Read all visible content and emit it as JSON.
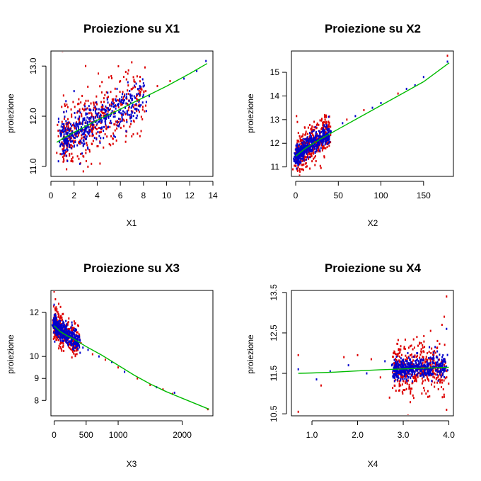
{
  "chart_data": [
    {
      "type": "scatter",
      "title": "Proiezione su X1",
      "xlabel": "X1",
      "ylabel": "proiezione",
      "xlim": [
        0,
        14
      ],
      "ylim": [
        10.8,
        13.3
      ],
      "xticks": [
        0,
        2,
        4,
        6,
        8,
        10,
        12,
        14
      ],
      "xtick_labels": [
        "0",
        "2",
        "4",
        "6",
        "8",
        "10",
        "12",
        "14"
      ],
      "yticks": [
        11.0,
        12.0,
        13.0
      ],
      "ytick_labels": [
        "11.0",
        "12.0",
        "13.0"
      ],
      "ytick_rotated": true,
      "grid": false,
      "series": [
        {
          "color": "#dd0000",
          "points": [
            [
              1.0,
              13.3
            ],
            [
              1.2,
              13.35
            ],
            [
              3.0,
              13.0
            ],
            [
              4.1,
              12.85
            ],
            [
              6.0,
              12.7
            ],
            [
              7.8,
              12.55
            ],
            [
              13.5,
              13.35
            ],
            [
              1.8,
              11.25
            ],
            [
              2.3,
              11.2
            ],
            [
              2.8,
              10.9
            ],
            [
              3.5,
              11.05
            ],
            [
              1.1,
              11.15
            ],
            [
              8.2,
              12.5
            ],
            [
              9.2,
              12.6
            ],
            [
              10.3,
              12.7
            ],
            [
              5.2,
              11.6
            ],
            [
              4.0,
              11.4
            ]
          ]
        },
        {
          "color": "#0000cc",
          "points": [
            [
              1.3,
              12.3
            ],
            [
              2.0,
              12.5
            ],
            [
              0.8,
              11.4
            ],
            [
              11.5,
              12.75
            ],
            [
              12.6,
              12.9
            ],
            [
              13.4,
              13.1
            ],
            [
              3.2,
              11.35
            ],
            [
              2.5,
              11.05
            ],
            [
              6.6,
              12.1
            ],
            [
              8.5,
              12.4
            ]
          ]
        }
      ],
      "clouds": [
        {
          "color": "#dd0000",
          "xc": [
            1.0,
            1.5,
            2.0,
            2.5,
            3.0,
            3.5,
            4.0,
            4.5,
            5.0,
            5.5,
            6.0,
            7.0,
            8.0
          ],
          "yc": [
            11.55,
            11.6,
            11.65,
            11.72,
            11.78,
            11.85,
            11.9,
            11.97,
            12.03,
            12.1,
            12.17,
            12.27,
            12.37
          ],
          "spread": 0.32,
          "count": 420
        },
        {
          "color": "#0000cc",
          "xc": [
            1.0,
            1.5,
            2.0,
            2.5,
            3.0,
            3.5,
            4.0,
            4.5,
            5.0,
            5.5,
            6.0,
            7.0,
            8.0
          ],
          "yc": [
            11.55,
            11.6,
            11.65,
            11.72,
            11.78,
            11.85,
            11.9,
            11.97,
            12.03,
            12.1,
            12.17,
            12.27,
            12.37
          ],
          "spread": 0.2,
          "count": 420
        }
      ],
      "fit_line": {
        "color": "#00bb00",
        "x": [
          0.5,
          1,
          2,
          3,
          4,
          5,
          6,
          7,
          8,
          10,
          12,
          13.5
        ],
        "y": [
          11.48,
          11.55,
          11.68,
          11.8,
          11.92,
          12.03,
          12.14,
          12.26,
          12.37,
          12.6,
          12.85,
          13.05
        ]
      }
    },
    {
      "type": "scatter",
      "title": "Proiezione su X2",
      "xlabel": "X2",
      "ylabel": "proiezione",
      "xlim": [
        -5,
        185
      ],
      "ylim": [
        10.6,
        15.9
      ],
      "xticks": [
        0,
        50,
        100,
        150
      ],
      "xtick_labels": [
        "0",
        "50",
        "100",
        "150"
      ],
      "yticks": [
        11,
        12,
        13,
        14,
        15
      ],
      "ytick_labels": [
        "11",
        "12",
        "13",
        "14",
        "15"
      ],
      "ytick_rotated": false,
      "grid": false,
      "series": [
        {
          "color": "#dd0000",
          "points": [
            [
              1,
              13.15
            ],
            [
              2,
              12.9
            ],
            [
              5,
              10.8
            ],
            [
              8,
              10.9
            ],
            [
              12,
              11.0
            ],
            [
              40,
              12.7
            ],
            [
              60,
              13.0
            ],
            [
              80,
              13.4
            ],
            [
              120,
              14.1
            ],
            [
              178,
              15.7
            ],
            [
              30,
              12.6
            ]
          ]
        },
        {
          "color": "#0000cc",
          "points": [
            [
              55,
              12.85
            ],
            [
              70,
              13.15
            ],
            [
              90,
              13.5
            ],
            [
              100,
              13.7
            ],
            [
              130,
              14.3
            ],
            [
              140,
              14.45
            ],
            [
              150,
              14.8
            ],
            [
              178,
              15.45
            ]
          ]
        }
      ],
      "clouds": [
        {
          "color": "#dd0000",
          "xc": [
            0,
            5,
            10,
            15,
            20,
            25,
            30,
            35,
            40
          ],
          "yc": [
            11.5,
            11.6,
            11.75,
            11.9,
            12.0,
            12.1,
            12.2,
            12.3,
            12.4
          ],
          "spread": 0.38,
          "count": 400
        },
        {
          "color": "#0000cc",
          "xc": [
            0,
            5,
            10,
            15,
            20,
            25,
            30,
            35,
            40
          ],
          "yc": [
            11.5,
            11.6,
            11.75,
            11.9,
            12.0,
            12.1,
            12.2,
            12.3,
            12.4
          ],
          "spread": 0.22,
          "count": 420
        }
      ],
      "fit_line": {
        "color": "#00bb00",
        "x": [
          0,
          10,
          20,
          30,
          50,
          75,
          100,
          125,
          150,
          180
        ],
        "y": [
          11.45,
          11.75,
          11.98,
          12.2,
          12.6,
          13.1,
          13.6,
          14.1,
          14.6,
          15.4
        ]
      }
    },
    {
      "type": "scatter",
      "title": "Proiezione su X3",
      "xlabel": "X3",
      "ylabel": "proiezione",
      "xlim": [
        -50,
        2480
      ],
      "ylim": [
        7.3,
        13.0
      ],
      "xticks": [
        0,
        500,
        1000,
        2000
      ],
      "xtick_labels": [
        "0",
        "500",
        "1000",
        "2000"
      ],
      "yticks": [
        8,
        9,
        10,
        12
      ],
      "ytick_labels": [
        "8",
        "9",
        "10",
        "12"
      ],
      "ytick_rotated": false,
      "grid": false,
      "series": [
        {
          "color": "#dd0000",
          "points": [
            [
              0,
              12.95
            ],
            [
              20,
              12.6
            ],
            [
              100,
              12.25
            ],
            [
              150,
              10.25
            ],
            [
              300,
              10.7
            ],
            [
              420,
              10.6
            ],
            [
              600,
              10.1
            ],
            [
              800,
              9.85
            ],
            [
              1000,
              9.5
            ],
            [
              1300,
              9.0
            ],
            [
              1500,
              8.7
            ],
            [
              1700,
              8.5
            ],
            [
              1850,
              8.3
            ],
            [
              2400,
              7.6
            ]
          ]
        },
        {
          "color": "#0000cc",
          "points": [
            [
              0,
              12.35
            ],
            [
              10,
              11.9
            ],
            [
              450,
              10.4
            ],
            [
              530,
              10.3
            ],
            [
              700,
              10.0
            ],
            [
              900,
              9.75
            ],
            [
              1100,
              9.3
            ],
            [
              1600,
              8.6
            ],
            [
              1880,
              8.35
            ]
          ]
        }
      ],
      "clouds": [
        {
          "color": "#dd0000",
          "xc": [
            0,
            50,
            100,
            150,
            200,
            250,
            300,
            350,
            400
          ],
          "yc": [
            11.45,
            11.3,
            11.2,
            11.1,
            11.0,
            10.9,
            10.8,
            10.72,
            10.65
          ],
          "spread": 0.35,
          "count": 320
        },
        {
          "color": "#0000cc",
          "xc": [
            0,
            50,
            100,
            150,
            200,
            250,
            300,
            350,
            400
          ],
          "yc": [
            11.45,
            11.3,
            11.2,
            11.1,
            11.0,
            10.9,
            10.8,
            10.72,
            10.65
          ],
          "spread": 0.22,
          "count": 360
        }
      ],
      "fit_line": {
        "color": "#00bb00",
        "x": [
          0,
          50,
          100,
          200,
          300,
          500,
          750,
          1000,
          1250,
          1500,
          1750,
          2000,
          2420
        ],
        "y": [
          11.4,
          11.25,
          11.12,
          10.95,
          10.8,
          10.45,
          10.05,
          9.6,
          9.15,
          8.75,
          8.4,
          8.1,
          7.6
        ]
      }
    },
    {
      "type": "scatter",
      "title": "Proiezione su X4",
      "xlabel": "X4",
      "ylabel": "proiezione",
      "xlim": [
        0.55,
        4.1
      ],
      "ylim": [
        10.45,
        13.55
      ],
      "xticks": [
        1.0,
        2.0,
        3.0,
        4.0
      ],
      "xtick_labels": [
        "1.0",
        "2.0",
        "3.0",
        "4.0"
      ],
      "yticks": [
        10.5,
        11.5,
        12.5,
        13.5
      ],
      "ytick_labels": [
        "10.5",
        "11.5",
        "12.5",
        "13.5"
      ],
      "ytick_rotated": true,
      "grid": false,
      "series": [
        {
          "color": "#dd0000",
          "points": [
            [
              0.7,
              11.95
            ],
            [
              0.7,
              10.55
            ],
            [
              1.2,
              11.2
            ],
            [
              1.7,
              11.9
            ],
            [
              2.0,
              11.95
            ],
            [
              2.3,
              11.85
            ],
            [
              2.5,
              11.4
            ],
            [
              2.7,
              10.9
            ],
            [
              2.8,
              11.75
            ],
            [
              3.3,
              12.4
            ],
            [
              3.5,
              11.0
            ],
            [
              3.75,
              12.3
            ],
            [
              3.9,
              12.9
            ],
            [
              3.95,
              13.4
            ],
            [
              3.95,
              10.6
            ],
            [
              3.6,
              12.55
            ],
            [
              3.85,
              12.7
            ],
            [
              2.9,
              12.1
            ]
          ]
        },
        {
          "color": "#0000cc",
          "points": [
            [
              0.7,
              11.6
            ],
            [
              1.1,
              11.35
            ],
            [
              1.4,
              11.55
            ],
            [
              1.8,
              11.7
            ],
            [
              2.2,
              11.5
            ],
            [
              2.6,
              11.8
            ],
            [
              3.1,
              12.0
            ],
            [
              3.2,
              11.3
            ],
            [
              3.7,
              12.15
            ],
            [
              3.95,
              12.6
            ]
          ]
        }
      ],
      "clouds": [
        {
          "color": "#dd0000",
          "xc": [
            2.8,
            3.0,
            3.2,
            3.4,
            3.6,
            3.8,
            3.95
          ],
          "yc": [
            11.58,
            11.6,
            11.62,
            11.63,
            11.64,
            11.65,
            11.66
          ],
          "spread": 0.32,
          "count": 420
        },
        {
          "color": "#0000cc",
          "xc": [
            2.8,
            3.0,
            3.2,
            3.4,
            3.6,
            3.8,
            3.95
          ],
          "yc": [
            11.58,
            11.6,
            11.62,
            11.63,
            11.64,
            11.65,
            11.66
          ],
          "spread": 0.13,
          "count": 440
        }
      ],
      "fit_line": {
        "color": "#00bb00",
        "x": [
          0.7,
          1.0,
          1.5,
          2.0,
          2.5,
          3.0,
          3.5,
          4.0
        ],
        "y": [
          11.5,
          11.51,
          11.53,
          11.56,
          11.59,
          11.61,
          11.63,
          11.65
        ]
      }
    }
  ]
}
